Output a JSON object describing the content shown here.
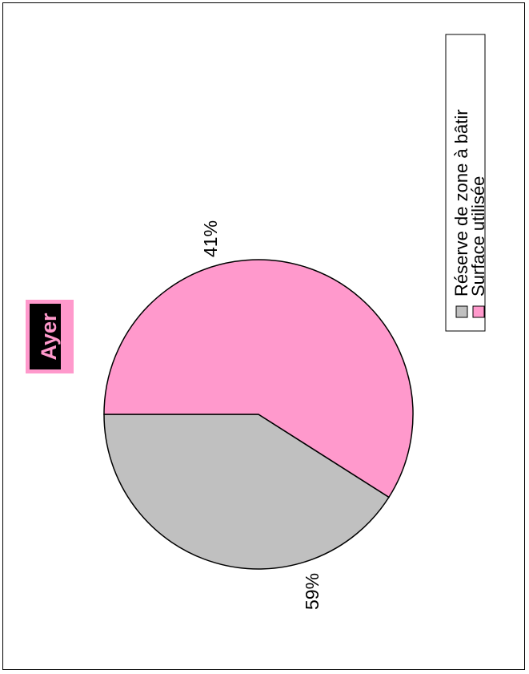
{
  "chart_data": {
    "type": "pie",
    "title": "Ayer",
    "categories": [
      "Réserve de zone à bâtir",
      "Surface utilisée"
    ],
    "values": [
      41,
      59
    ],
    "labels": [
      "41%",
      "59%"
    ],
    "colors": [
      "#c0c0c0",
      "#ff99cc"
    ],
    "title_bg": "#ff99cc",
    "title_fg": "#000000",
    "legend_position": "right",
    "orientation": "rotated-90-ccw"
  }
}
